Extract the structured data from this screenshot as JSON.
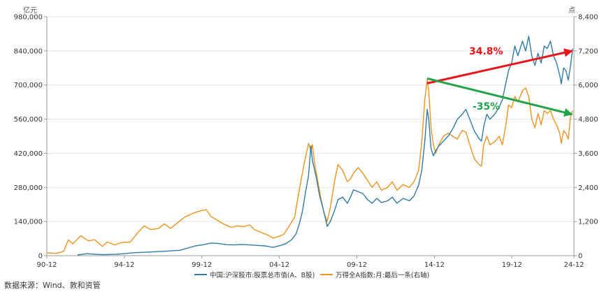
{
  "chart_data": {
    "type": "line",
    "left_unit": "亿元",
    "right_unit": "点",
    "x_range": [
      1990.917,
      2024.917
    ],
    "x_ticks": [
      {
        "x": 1990.917,
        "label": "90-12"
      },
      {
        "x": 1995.917,
        "label": "94-12"
      },
      {
        "x": 2000.917,
        "label": "99-12"
      },
      {
        "x": 2005.917,
        "label": "04-12"
      },
      {
        "x": 2010.917,
        "label": "09-12"
      },
      {
        "x": 2015.917,
        "label": "14-12"
      },
      {
        "x": 2020.917,
        "label": "19-12"
      },
      {
        "x": 2024.917,
        "label": "24-12"
      }
    ],
    "left_axis": {
      "range": [
        0,
        980000
      ],
      "ticks": [
        {
          "v": 0,
          "label": "0"
        },
        {
          "v": 140000,
          "label": "140,000"
        },
        {
          "v": 280000,
          "label": "280,000"
        },
        {
          "v": 420000,
          "label": "420,000"
        },
        {
          "v": 560000,
          "label": "560,000"
        },
        {
          "v": 700000,
          "label": "700,000"
        },
        {
          "v": 840000,
          "label": "840,000"
        },
        {
          "v": 980000,
          "label": "980,000"
        }
      ]
    },
    "right_axis": {
      "range": [
        0,
        8400
      ],
      "ticks": [
        {
          "v": 0,
          "label": "0"
        },
        {
          "v": 1200,
          "label": "1,200"
        },
        {
          "v": 2400,
          "label": "2,400"
        },
        {
          "v": 3600,
          "label": "3,600"
        },
        {
          "v": 4800,
          "label": "4,800"
        },
        {
          "v": 6000,
          "label": "6,000"
        },
        {
          "v": 7200,
          "label": "7,200"
        },
        {
          "v": 8400,
          "label": "8,400"
        }
      ]
    },
    "series": [
      {
        "name": "中国:沪深股市:股票总市值(A、B股)",
        "axis": "left",
        "color": "#2e7ba8",
        "points": [
          [
            1992.9,
            3000
          ],
          [
            1993.5,
            8000
          ],
          [
            1994.5,
            4000
          ],
          [
            1995.5,
            6000
          ],
          [
            1996.5,
            12000
          ],
          [
            1997.5,
            15000
          ],
          [
            1998.5,
            18000
          ],
          [
            1999.5,
            22000
          ],
          [
            2000.5,
            40000
          ],
          [
            2001.0,
            45000
          ],
          [
            2001.5,
            52000
          ],
          [
            2002.0,
            50000
          ],
          [
            2002.5,
            45000
          ],
          [
            2003.0,
            44000
          ],
          [
            2003.5,
            46000
          ],
          [
            2004.0,
            44000
          ],
          [
            2004.5,
            42000
          ],
          [
            2005.0,
            40000
          ],
          [
            2005.5,
            34000
          ],
          [
            2006.0,
            42000
          ],
          [
            2006.3,
            48000
          ],
          [
            2006.7,
            65000
          ],
          [
            2007.0,
            90000
          ],
          [
            2007.2,
            130000
          ],
          [
            2007.4,
            180000
          ],
          [
            2007.6,
            260000
          ],
          [
            2007.8,
            330000
          ],
          [
            2007.95,
            450000
          ],
          [
            2008.05,
            390000
          ],
          [
            2008.3,
            320000
          ],
          [
            2008.5,
            250000
          ],
          [
            2008.7,
            200000
          ],
          [
            2008.9,
            150000
          ],
          [
            2009.0,
            120000
          ],
          [
            2009.2,
            140000
          ],
          [
            2009.5,
            190000
          ],
          [
            2009.7,
            230000
          ],
          [
            2010.0,
            240000
          ],
          [
            2010.3,
            215000
          ],
          [
            2010.5,
            240000
          ],
          [
            2010.7,
            270000
          ],
          [
            2010.9,
            265000
          ],
          [
            2011.3,
            255000
          ],
          [
            2011.6,
            230000
          ],
          [
            2011.9,
            215000
          ],
          [
            2012.2,
            235000
          ],
          [
            2012.5,
            218000
          ],
          [
            2012.9,
            225000
          ],
          [
            2013.2,
            240000
          ],
          [
            2013.5,
            215000
          ],
          [
            2013.9,
            235000
          ],
          [
            2014.3,
            225000
          ],
          [
            2014.6,
            245000
          ],
          [
            2014.9,
            290000
          ],
          [
            2015.1,
            350000
          ],
          [
            2015.3,
            470000
          ],
          [
            2015.45,
            600000
          ],
          [
            2015.55,
            560000
          ],
          [
            2015.7,
            440000
          ],
          [
            2015.85,
            410000
          ],
          [
            2016.0,
            430000
          ],
          [
            2016.2,
            450000
          ],
          [
            2016.5,
            470000
          ],
          [
            2016.8,
            490000
          ],
          [
            2017.1,
            520000
          ],
          [
            2017.4,
            560000
          ],
          [
            2017.7,
            580000
          ],
          [
            2017.95,
            600000
          ],
          [
            2018.2,
            560000
          ],
          [
            2018.5,
            510000
          ],
          [
            2018.8,
            480000
          ],
          [
            2018.95,
            470000
          ],
          [
            2019.1,
            530000
          ],
          [
            2019.3,
            580000
          ],
          [
            2019.5,
            560000
          ],
          [
            2019.8,
            580000
          ],
          [
            2020.1,
            610000
          ],
          [
            2020.3,
            640000
          ],
          [
            2020.5,
            700000
          ],
          [
            2020.7,
            760000
          ],
          [
            2020.9,
            790000
          ],
          [
            2021.1,
            860000
          ],
          [
            2021.3,
            820000
          ],
          [
            2021.6,
            880000
          ],
          [
            2021.8,
            840000
          ],
          [
            2022.0,
            900000
          ],
          [
            2022.2,
            820000
          ],
          [
            2022.4,
            780000
          ],
          [
            2022.6,
            830000
          ],
          [
            2022.8,
            790000
          ],
          [
            2023.0,
            860000
          ],
          [
            2023.2,
            850000
          ],
          [
            2023.4,
            880000
          ],
          [
            2023.6,
            820000
          ],
          [
            2023.8,
            790000
          ],
          [
            2024.0,
            740000
          ],
          [
            2024.1,
            705000
          ],
          [
            2024.25,
            770000
          ],
          [
            2024.4,
            760000
          ],
          [
            2024.55,
            720000
          ],
          [
            2024.7,
            780000
          ],
          [
            2024.83,
            850000
          ]
        ]
      },
      {
        "name": "万得全A指数:月:最后一条(右轴)",
        "axis": "right",
        "color": "#f0921e",
        "points": [
          [
            1990.9,
            100
          ],
          [
            1991.5,
            80
          ],
          [
            1992.0,
            150
          ],
          [
            1992.3,
            550
          ],
          [
            1992.6,
            420
          ],
          [
            1993.1,
            700
          ],
          [
            1993.6,
            520
          ],
          [
            1994.0,
            560
          ],
          [
            1994.5,
            330
          ],
          [
            1994.8,
            480
          ],
          [
            1995.3,
            380
          ],
          [
            1995.7,
            460
          ],
          [
            1996.3,
            480
          ],
          [
            1996.8,
            820
          ],
          [
            1997.2,
            1050
          ],
          [
            1997.6,
            920
          ],
          [
            1998.1,
            950
          ],
          [
            1998.5,
            1120
          ],
          [
            1998.9,
            960
          ],
          [
            1999.5,
            1220
          ],
          [
            1999.8,
            1350
          ],
          [
            2000.3,
            1480
          ],
          [
            2000.8,
            1570
          ],
          [
            2001.2,
            1620
          ],
          [
            2001.5,
            1380
          ],
          [
            2001.9,
            1250
          ],
          [
            2002.3,
            1120
          ],
          [
            2002.8,
            1000
          ],
          [
            2003.2,
            1050
          ],
          [
            2003.6,
            1020
          ],
          [
            2004.0,
            1080
          ],
          [
            2004.3,
            920
          ],
          [
            2004.8,
            800
          ],
          [
            2005.2,
            720
          ],
          [
            2005.5,
            620
          ],
          [
            2005.9,
            680
          ],
          [
            2006.2,
            750
          ],
          [
            2006.5,
            1000
          ],
          [
            2006.9,
            1350
          ],
          [
            2007.1,
            2000
          ],
          [
            2007.3,
            2600
          ],
          [
            2007.5,
            3200
          ],
          [
            2007.7,
            3700
          ],
          [
            2007.8,
            3950
          ],
          [
            2007.95,
            3700
          ],
          [
            2008.05,
            3900
          ],
          [
            2008.2,
            3200
          ],
          [
            2008.4,
            2600
          ],
          [
            2008.6,
            2000
          ],
          [
            2008.8,
            1500
          ],
          [
            2009.0,
            1200
          ],
          [
            2009.2,
            1700
          ],
          [
            2009.5,
            2700
          ],
          [
            2009.7,
            3200
          ],
          [
            2010.0,
            3000
          ],
          [
            2010.3,
            2600
          ],
          [
            2010.5,
            2700
          ],
          [
            2010.7,
            2900
          ],
          [
            2011.0,
            3100
          ],
          [
            2011.3,
            2900
          ],
          [
            2011.6,
            2650
          ],
          [
            2011.9,
            2400
          ],
          [
            2012.2,
            2600
          ],
          [
            2012.5,
            2300
          ],
          [
            2012.9,
            2400
          ],
          [
            2013.2,
            2600
          ],
          [
            2013.5,
            2300
          ],
          [
            2013.9,
            2500
          ],
          [
            2014.3,
            2400
          ],
          [
            2014.6,
            2600
          ],
          [
            2014.9,
            3000
          ],
          [
            2015.1,
            4000
          ],
          [
            2015.3,
            5500
          ],
          [
            2015.45,
            6200
          ],
          [
            2015.55,
            5800
          ],
          [
            2015.7,
            4500
          ],
          [
            2015.85,
            3900
          ],
          [
            2016.0,
            3600
          ],
          [
            2016.2,
            3900
          ],
          [
            2016.5,
            4200
          ],
          [
            2016.8,
            4300
          ],
          [
            2017.1,
            4200
          ],
          [
            2017.4,
            4100
          ],
          [
            2017.7,
            4400
          ],
          [
            2017.95,
            4350
          ],
          [
            2018.2,
            3900
          ],
          [
            2018.5,
            3400
          ],
          [
            2018.8,
            3200
          ],
          [
            2018.95,
            3150
          ],
          [
            2019.1,
            3900
          ],
          [
            2019.3,
            4200
          ],
          [
            2019.5,
            3900
          ],
          [
            2019.8,
            4000
          ],
          [
            2020.1,
            4200
          ],
          [
            2020.3,
            3900
          ],
          [
            2020.5,
            4500
          ],
          [
            2020.7,
            5300
          ],
          [
            2020.9,
            5200
          ],
          [
            2021.1,
            5600
          ],
          [
            2021.3,
            5400
          ],
          [
            2021.6,
            5800
          ],
          [
            2021.8,
            5900
          ],
          [
            2022.0,
            5600
          ],
          [
            2022.2,
            4800
          ],
          [
            2022.4,
            4500
          ],
          [
            2022.6,
            5000
          ],
          [
            2022.8,
            4600
          ],
          [
            2023.0,
            5100
          ],
          [
            2023.2,
            5000
          ],
          [
            2023.4,
            5100
          ],
          [
            2023.6,
            4800
          ],
          [
            2023.8,
            4600
          ],
          [
            2024.0,
            4300
          ],
          [
            2024.1,
            3950
          ],
          [
            2024.25,
            4400
          ],
          [
            2024.4,
            4300
          ],
          [
            2024.55,
            4100
          ],
          [
            2024.7,
            4900
          ],
          [
            2024.83,
            5100
          ]
        ]
      }
    ],
    "annotations": [
      {
        "name": "red-trend-arrow",
        "axis": "right",
        "color": "#e8151b",
        "from": [
          2015.45,
          6060
        ],
        "to": [
          2024.8,
          7200
        ],
        "label": "34.8%"
      },
      {
        "name": "green-trend-arrow",
        "axis": "right",
        "color": "#23a34a",
        "from": [
          2015.45,
          6230
        ],
        "to": [
          2024.8,
          4970
        ],
        "label": "-35%"
      }
    ],
    "legend_position": "bottom-center",
    "source": "数据来源：Wind、敦和资管"
  }
}
